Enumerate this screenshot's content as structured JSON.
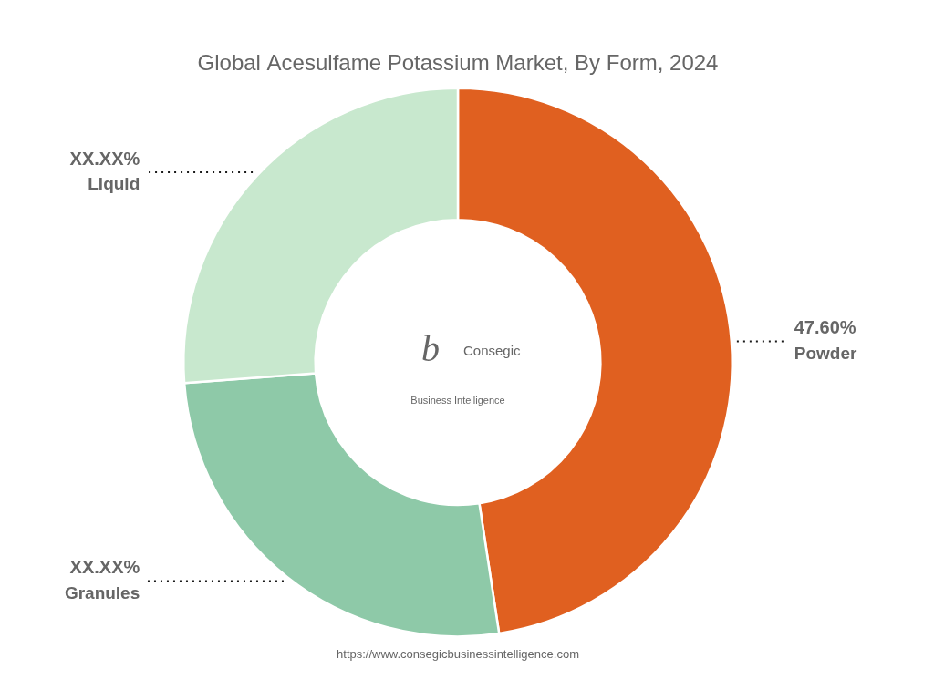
{
  "chart_data": {
    "type": "doughnut",
    "title": "Global Acesulfame Potassium Market, By Form, 2024",
    "categories": [
      "Powder",
      "Granules",
      "Liquid"
    ],
    "values": [
      47.6,
      26.2,
      26.2
    ],
    "value_labels": [
      "47.60%",
      "XX.XX%",
      "XX.XX%"
    ],
    "colors": [
      "#E06020",
      "#8EC9A8",
      "#C8E8CE"
    ],
    "data_labels": true,
    "annotations": [
      "b",
      "Consegic",
      "Business Intelligence",
      "https://www.consegicbusinessintelligence.com"
    ]
  }
}
